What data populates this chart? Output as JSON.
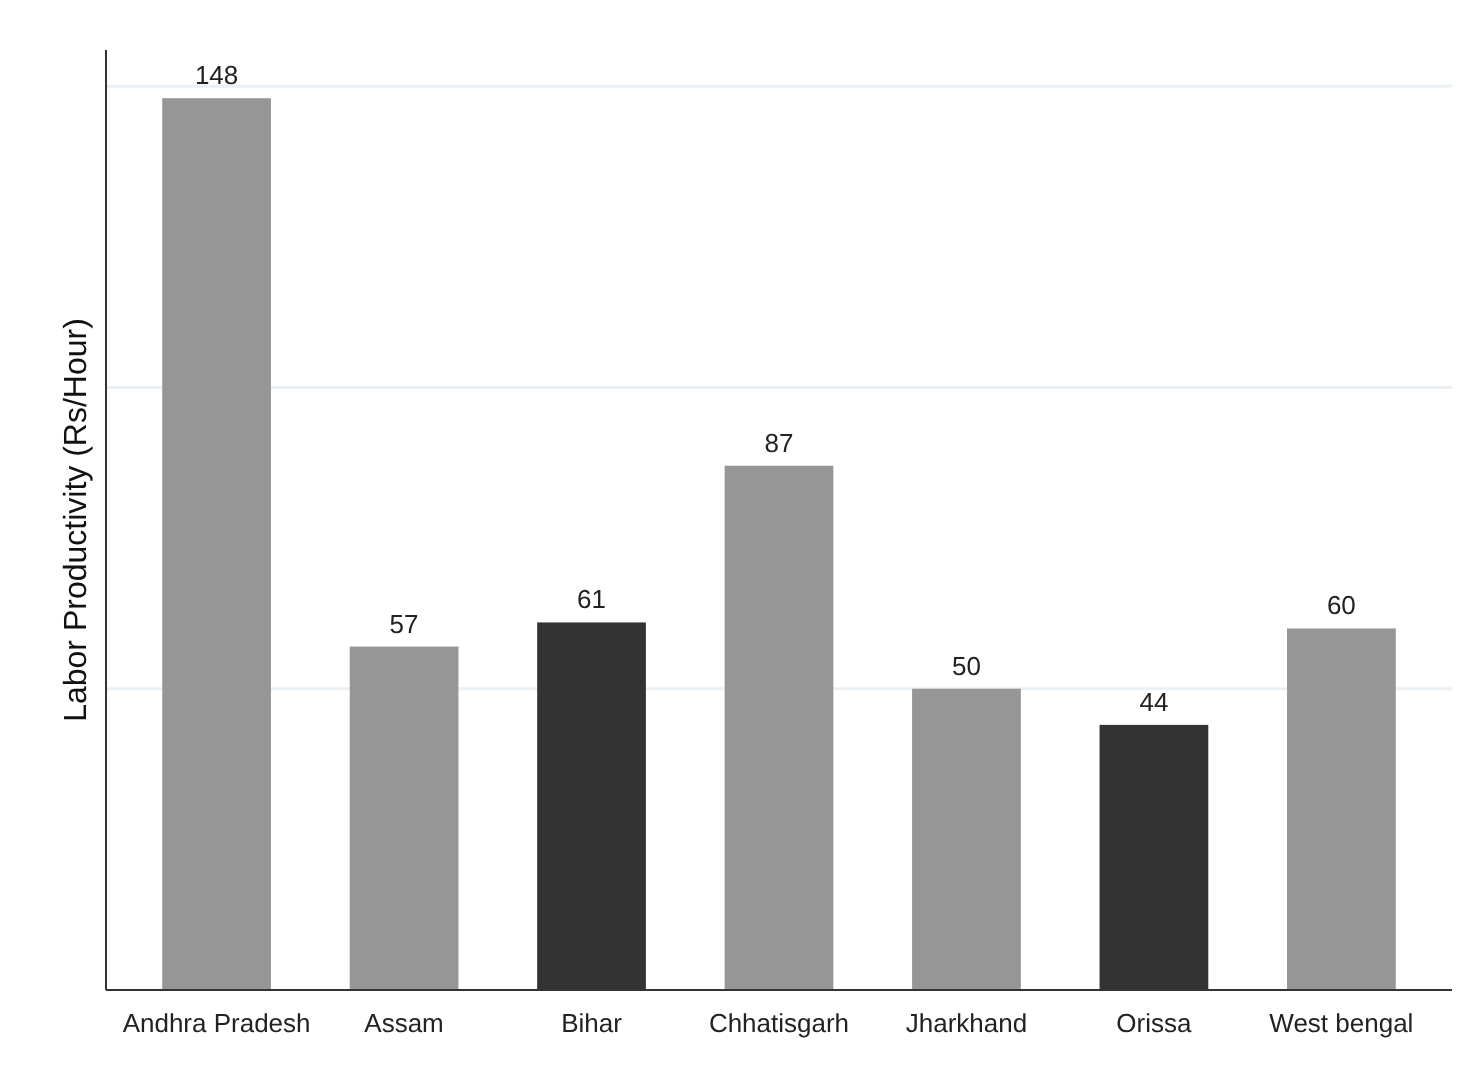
{
  "chart_data": {
    "type": "bar",
    "ylabel": "Labor Productivity (Rs/Hour)",
    "categories": [
      "Andhra Pradesh",
      "Assam",
      "Bihar",
      "Chhatisgarh",
      "Jharkhand",
      "Orissa",
      "West bengal"
    ],
    "values": [
      148,
      57,
      61,
      87,
      50,
      44,
      60
    ],
    "colors": [
      "#969696",
      "#969696",
      "#333333",
      "#969696",
      "#969696",
      "#333333",
      "#969696"
    ],
    "ylim": [
      0,
      156
    ],
    "yticks": [
      {
        "value": 50,
        "label": null
      },
      {
        "value": 100,
        "label": null
      },
      {
        "value": 150,
        "label": null
      }
    ],
    "grid": "y",
    "data_labels": true,
    "tick_labels": "x"
  }
}
